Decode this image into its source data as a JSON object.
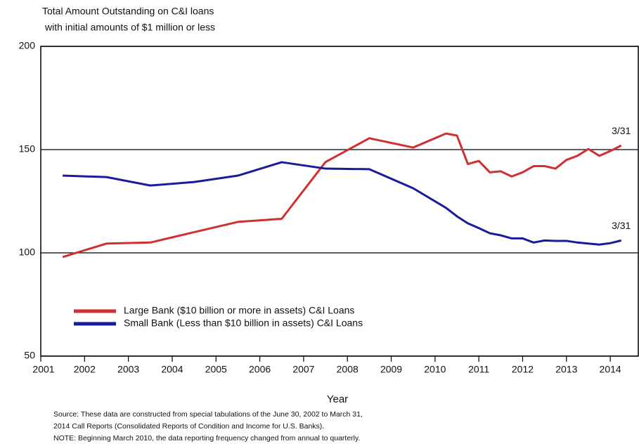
{
  "chart_data": {
    "type": "line",
    "title": [
      "Total Amount Outstanding on C&I loans",
      "with initial amounts of $1 million or less"
    ],
    "xlabel": "Year",
    "notes": [
      "Source: These data are constructed from special tabulations of the June 30, 2002  to March 31,",
      "2014 Call Reports (Consolidated Reports of Condition and Income for U.S. Banks).",
      "NOTE: Beginning March 2010, the data reporting frequency changed from annual to quarterly."
    ],
    "x": [
      2001.5,
      2002.5,
      2003.5,
      2004.5,
      2005.5,
      2006.5,
      2007.5,
      2008.5,
      2009.5,
      2010.25,
      2010.5,
      2010.75,
      2011.0,
      2011.25,
      2011.5,
      2011.75,
      2012.0,
      2012.25,
      2012.5,
      2012.75,
      2013.0,
      2013.25,
      2013.5,
      2013.75,
      2014.0,
      2014.25
    ],
    "series": [
      {
        "name": "Large Bank ($10 billion or more in assets) C&I Loans",
        "color": "#d03030",
        "values": [
          98,
          104.5,
          105,
          110,
          115,
          116.5,
          144,
          155.5,
          151,
          157.8,
          156.8,
          143,
          144.5,
          139,
          139.5,
          137,
          139,
          142,
          142,
          140.8,
          145,
          147,
          150.3,
          147,
          149.3,
          152
        ]
      },
      {
        "name": "Small Bank (Less than $10 billion in assets) C&I Loans",
        "color": "#1a1a9c",
        "values": [
          137.4,
          136.7,
          132.6,
          134.3,
          137.4,
          143.9,
          140.8,
          140.5,
          131.3,
          121.8,
          117.7,
          114.3,
          112,
          109.5,
          108.5,
          107,
          107,
          105,
          106,
          105.8,
          105.8,
          105,
          104.5,
          104,
          104.7,
          106
        ]
      }
    ],
    "annotations": [
      "3/31",
      "3/31"
    ],
    "xlim": [
      2001,
      2014.64
    ],
    "xticks": [
      2001,
      2002,
      2003,
      2004,
      2005,
      2006,
      2007,
      2008,
      2009,
      2010,
      2011,
      2012,
      2013,
      2014
    ],
    "ylim": [
      50,
      200
    ],
    "yticks": [
      50,
      100,
      150,
      200
    ],
    "grid": true
  }
}
